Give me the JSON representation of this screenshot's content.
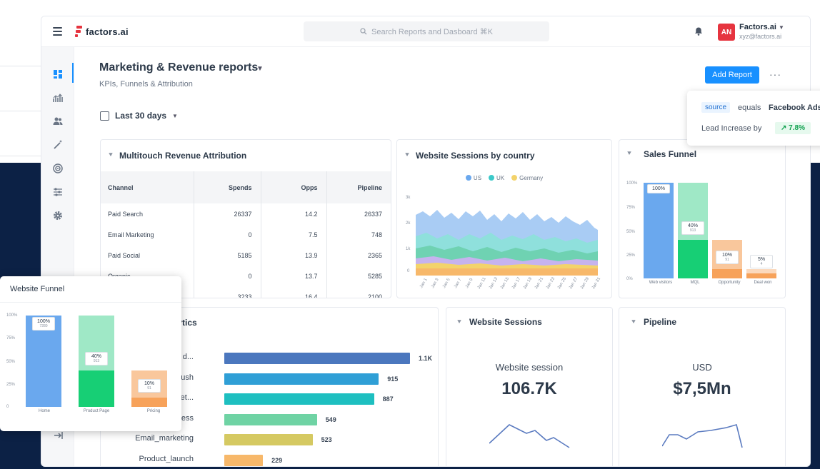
{
  "app": {
    "logo_text": "factors.ai",
    "search_placeholder": "Search Reports and Dasboard ⌘K",
    "account_name": "Factors.ai",
    "account_email": "xyz@factors.ai",
    "avatar_initials": "AN"
  },
  "page": {
    "title": "Marketing & Revenue reports",
    "subtitle": "KPIs, Funnels & Attribution",
    "add_report_label": "Add Report",
    "date_range": "Last 30 days"
  },
  "multitouch": {
    "title": "Multitouch Revenue Attribution",
    "columns": [
      "Channel",
      "Spends",
      "Opps",
      "Pipeline"
    ],
    "rows": [
      [
        "Paid Search",
        "26337",
        "14.2",
        "26337"
      ],
      [
        "Email Marketing",
        "0",
        "7.5",
        "748"
      ],
      [
        "Paid Social",
        "5185",
        "13.9",
        "2365"
      ],
      [
        "Organic",
        "0",
        "13.7",
        "5285"
      ],
      [
        "",
        "3233",
        "16.4",
        "2100"
      ]
    ]
  },
  "sessions_country": {
    "title": "Website Sessions by country",
    "legend": [
      {
        "name": "US",
        "color": "#6aa8ee"
      },
      {
        "name": "UK",
        "color": "#3cc9c9"
      },
      {
        "name": "Germany",
        "color": "#f3d36b"
      }
    ],
    "y_ticks": [
      "3k",
      "2k",
      "1k",
      "0"
    ],
    "x_ticks": [
      "Jan 1",
      "Jan 3",
      "Jan 5",
      "Jan 7",
      "Jan 9",
      "Jan 11",
      "Jan 13",
      "Jan 15",
      "Jan 17",
      "Jan 19",
      "Jan 21",
      "Jan 23",
      "Jan 25",
      "Jan 27",
      "Jan 29",
      "Jan 31"
    ]
  },
  "sales_funnel": {
    "title": "Sales Funnel",
    "y_ticks": [
      "100%",
      "75%",
      "50%",
      "25%",
      "0%"
    ],
    "stages": [
      {
        "label": "Web visitors",
        "pct": "100%",
        "pct_value": 100,
        "count": ""
      },
      {
        "label": "MQL",
        "pct": "40%",
        "pct_value": 40,
        "count": "913"
      },
      {
        "label": "Opportunity",
        "pct": "10%",
        "pct_value": 10,
        "count": "91"
      },
      {
        "label": "Deal won",
        "pct": "5%",
        "pct_value": 5,
        "count": "4"
      }
    ]
  },
  "analytics": {
    "title": "lytics",
    "rows": [
      {
        "label": "d...",
        "value": 1100,
        "value_label": "1.1K",
        "color": "#4b77be"
      },
      {
        "label": "ush",
        "value": 915,
        "value_label": "915",
        "color": "#2f9fd6"
      },
      {
        "label": "et...",
        "value": 887,
        "value_label": "887",
        "color": "#1ebfc0"
      },
      {
        "label": "ess",
        "value": 549,
        "value_label": "549",
        "color": "#6fd3a4"
      },
      {
        "label": "Email_marketing",
        "value": 523,
        "value_label": "523",
        "color": "#d5c962"
      },
      {
        "label": "Product_launch",
        "value": 229,
        "value_label": "229",
        "color": "#f7b86a"
      }
    ]
  },
  "website_sessions": {
    "title": "Website Sessions",
    "metric_label": "Website session",
    "metric_value": "106.7K"
  },
  "pipeline": {
    "title": "Pipeline",
    "metric_label": "USD",
    "metric_value": "$7,5Mn"
  },
  "website_funnel": {
    "title": "Website Funnel",
    "y_ticks": [
      "100%",
      "75%",
      "50%",
      "25%",
      "0"
    ],
    "stages": [
      {
        "label": "Home",
        "pct": "100%",
        "pct_value": 100,
        "count": "7280"
      },
      {
        "label": "Product Page",
        "pct": "40%",
        "pct_value": 40,
        "count": "913"
      },
      {
        "label": "Pricing",
        "pct": "10%",
        "pct_value": 10,
        "count": "91"
      }
    ]
  },
  "filter_popup": {
    "source_chip": "source",
    "operator": "equals",
    "value": "Facebook Ads",
    "lead_label": "Lead Increase by",
    "lead_value": "7.8%"
  }
}
